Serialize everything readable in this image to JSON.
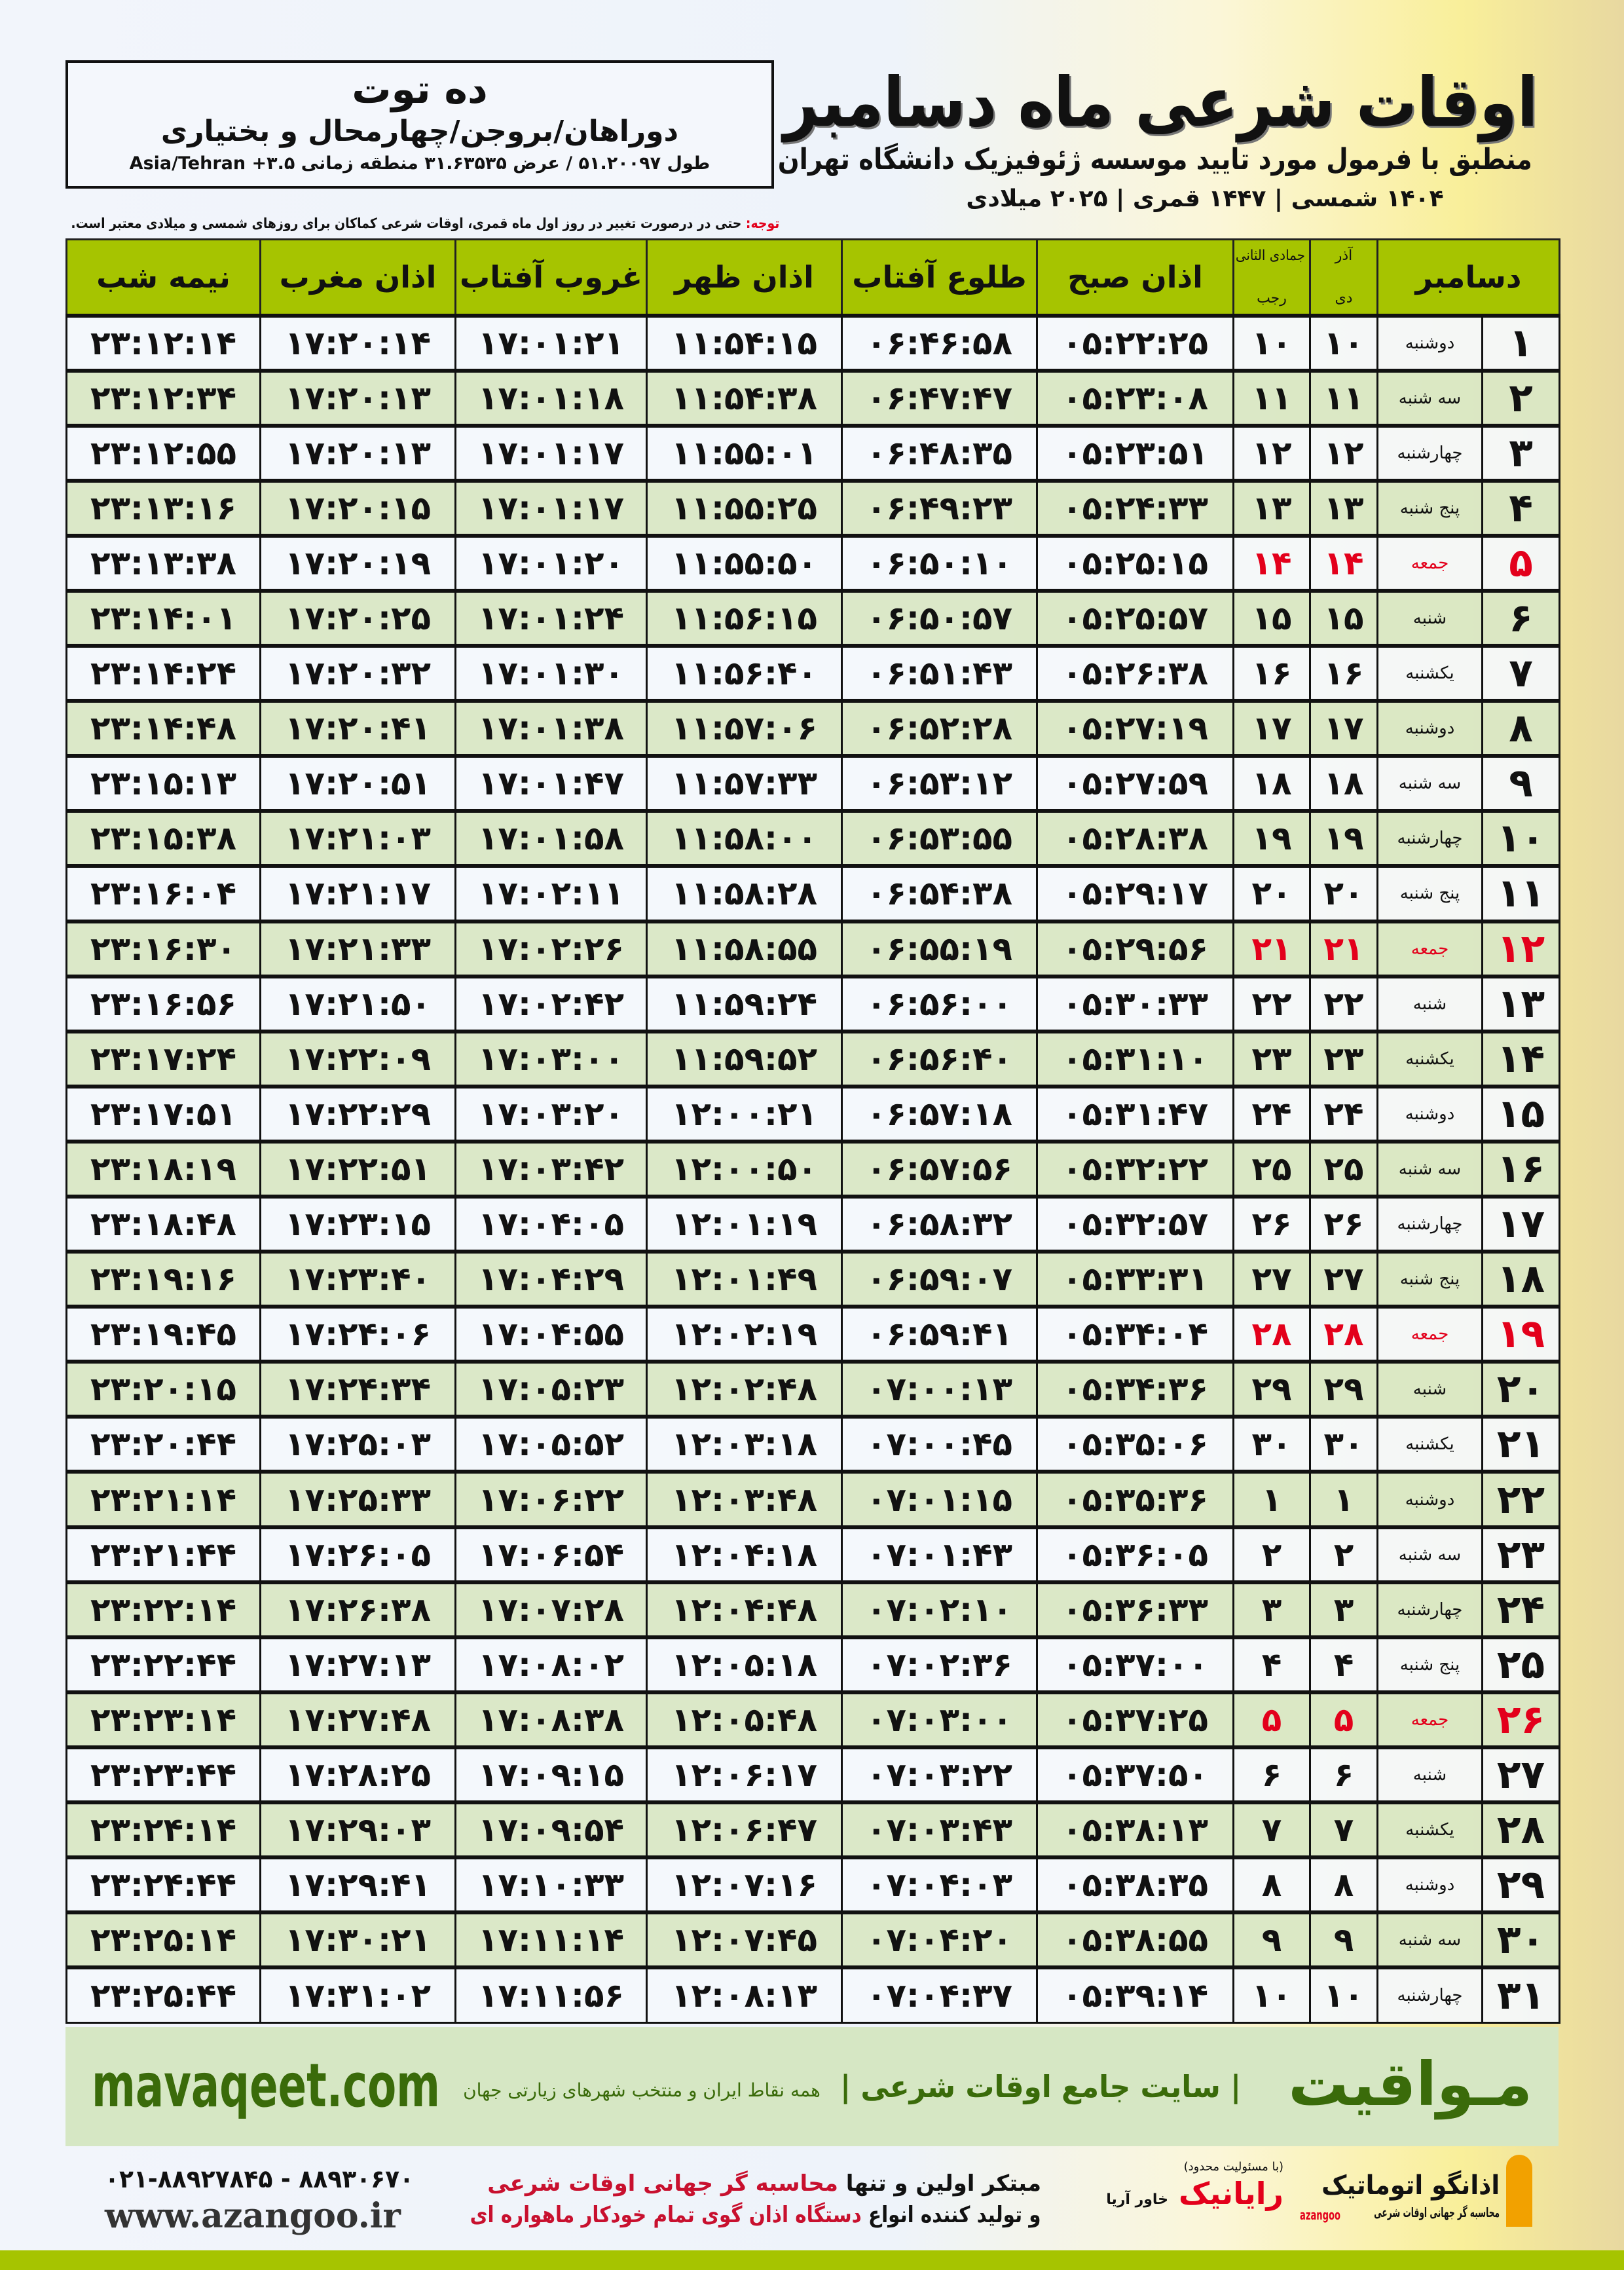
{
  "location": {
    "city": "ده توت",
    "region": "دوراهان/بروجن/چهارمحال و بختیاری",
    "coords": "طول ۵۱.۲۰۰۹۷ / عرض ۳۱.۶۳۵۳۵ منطقه زمانی ۳.۵+ Asia/Tehran"
  },
  "header": {
    "title": "اوقات شرعی ماه دسامبر",
    "subtitle": "منطبق با فرمول مورد تایید موسسه ژئوفیزیک دانشگاه تهران",
    "dates": "۱۴۰۴ شمسی | ۱۴۴۷ قمری | ۲۰۲۵ میلادی"
  },
  "note": {
    "label": "توجه:",
    "text": " حتی در درصورت تغییر در روز اول ماه قمری، اوقات شرعی کماکان برای روزهای شمسی و میلادی معتبر است."
  },
  "columns": {
    "month": "دسامبر",
    "shamsi_months": "آذر",
    "qamari_months": "جمادی الثانی",
    "shamsi_sub": "دی",
    "qamari_sub": "رجب",
    "fajr": "اذان صبح",
    "sunrise": "طلوع آفتاب",
    "dhuhr": "اذان ظهر",
    "sunset": "غروب آفتاب",
    "maghrib": "اذان مغرب",
    "midnight": "نیمه شب"
  },
  "colors": {
    "header_green": "#a6c400",
    "row_green": "#d9e7c5",
    "friday_red": "#e3001b",
    "brand_green": "#3a6b0a"
  },
  "rows": [
    {
      "d": "۱",
      "w": "دوشنبه",
      "s": "۱۰",
      "q": "۱۰",
      "t": [
        "۰۵:۲۲:۲۵",
        "۰۶:۴۶:۵۸",
        "۱۱:۵۴:۱۵",
        "۱۷:۰۱:۲۱",
        "۱۷:۲۰:۱۴",
        "۲۳:۱۲:۱۴"
      ]
    },
    {
      "d": "۲",
      "w": "سه شنبه",
      "s": "۱۱",
      "q": "۱۱",
      "t": [
        "۰۵:۲۳:۰۸",
        "۰۶:۴۷:۴۷",
        "۱۱:۵۴:۳۸",
        "۱۷:۰۱:۱۸",
        "۱۷:۲۰:۱۳",
        "۲۳:۱۲:۳۴"
      ]
    },
    {
      "d": "۳",
      "w": "چهارشنبه",
      "s": "۱۲",
      "q": "۱۲",
      "t": [
        "۰۵:۲۳:۵۱",
        "۰۶:۴۸:۳۵",
        "۱۱:۵۵:۰۱",
        "۱۷:۰۱:۱۷",
        "۱۷:۲۰:۱۳",
        "۲۳:۱۲:۵۵"
      ]
    },
    {
      "d": "۴",
      "w": "پنج شنبه",
      "s": "۱۳",
      "q": "۱۳",
      "t": [
        "۰۵:۲۴:۳۳",
        "۰۶:۴۹:۲۳",
        "۱۱:۵۵:۲۵",
        "۱۷:۰۱:۱۷",
        "۱۷:۲۰:۱۵",
        "۲۳:۱۳:۱۶"
      ]
    },
    {
      "d": "۵",
      "w": "جمعه",
      "s": "۱۴",
      "q": "۱۴",
      "friday": true,
      "t": [
        "۰۵:۲۵:۱۵",
        "۰۶:۵۰:۱۰",
        "۱۱:۵۵:۵۰",
        "۱۷:۰۱:۲۰",
        "۱۷:۲۰:۱۹",
        "۲۳:۱۳:۳۸"
      ]
    },
    {
      "d": "۶",
      "w": "شنبه",
      "s": "۱۵",
      "q": "۱۵",
      "t": [
        "۰۵:۲۵:۵۷",
        "۰۶:۵۰:۵۷",
        "۱۱:۵۶:۱۵",
        "۱۷:۰۱:۲۴",
        "۱۷:۲۰:۲۵",
        "۲۳:۱۴:۰۱"
      ]
    },
    {
      "d": "۷",
      "w": "یکشنبه",
      "s": "۱۶",
      "q": "۱۶",
      "t": [
        "۰۵:۲۶:۳۸",
        "۰۶:۵۱:۴۳",
        "۱۱:۵۶:۴۰",
        "۱۷:۰۱:۳۰",
        "۱۷:۲۰:۳۲",
        "۲۳:۱۴:۲۴"
      ]
    },
    {
      "d": "۸",
      "w": "دوشنبه",
      "s": "۱۷",
      "q": "۱۷",
      "t": [
        "۰۵:۲۷:۱۹",
        "۰۶:۵۲:۲۸",
        "۱۱:۵۷:۰۶",
        "۱۷:۰۱:۳۸",
        "۱۷:۲۰:۴۱",
        "۲۳:۱۴:۴۸"
      ]
    },
    {
      "d": "۹",
      "w": "سه شنبه",
      "s": "۱۸",
      "q": "۱۸",
      "t": [
        "۰۵:۲۷:۵۹",
        "۰۶:۵۳:۱۲",
        "۱۱:۵۷:۳۳",
        "۱۷:۰۱:۴۷",
        "۱۷:۲۰:۵۱",
        "۲۳:۱۵:۱۳"
      ]
    },
    {
      "d": "۱۰",
      "w": "چهارشنبه",
      "s": "۱۹",
      "q": "۱۹",
      "t": [
        "۰۵:۲۸:۳۸",
        "۰۶:۵۳:۵۵",
        "۱۱:۵۸:۰۰",
        "۱۷:۰۱:۵۸",
        "۱۷:۲۱:۰۳",
        "۲۳:۱۵:۳۸"
      ]
    },
    {
      "d": "۱۱",
      "w": "پنج شنبه",
      "s": "۲۰",
      "q": "۲۰",
      "t": [
        "۰۵:۲۹:۱۷",
        "۰۶:۵۴:۳۸",
        "۱۱:۵۸:۲۸",
        "۱۷:۰۲:۱۱",
        "۱۷:۲۱:۱۷",
        "۲۳:۱۶:۰۴"
      ]
    },
    {
      "d": "۱۲",
      "w": "جمعه",
      "s": "۲۱",
      "q": "۲۱",
      "friday": true,
      "t": [
        "۰۵:۲۹:۵۶",
        "۰۶:۵۵:۱۹",
        "۱۱:۵۸:۵۵",
        "۱۷:۰۲:۲۶",
        "۱۷:۲۱:۳۳",
        "۲۳:۱۶:۳۰"
      ]
    },
    {
      "d": "۱۳",
      "w": "شنبه",
      "s": "۲۲",
      "q": "۲۲",
      "t": [
        "۰۵:۳۰:۳۳",
        "۰۶:۵۶:۰۰",
        "۱۱:۵۹:۲۴",
        "۱۷:۰۲:۴۲",
        "۱۷:۲۱:۵۰",
        "۲۳:۱۶:۵۶"
      ]
    },
    {
      "d": "۱۴",
      "w": "یکشنبه",
      "s": "۲۳",
      "q": "۲۳",
      "t": [
        "۰۵:۳۱:۱۰",
        "۰۶:۵۶:۴۰",
        "۱۱:۵۹:۵۲",
        "۱۷:۰۳:۰۰",
        "۱۷:۲۲:۰۹",
        "۲۳:۱۷:۲۴"
      ]
    },
    {
      "d": "۱۵",
      "w": "دوشنبه",
      "s": "۲۴",
      "q": "۲۴",
      "t": [
        "۰۵:۳۱:۴۷",
        "۰۶:۵۷:۱۸",
        "۱۲:۰۰:۲۱",
        "۱۷:۰۳:۲۰",
        "۱۷:۲۲:۲۹",
        "۲۳:۱۷:۵۱"
      ]
    },
    {
      "d": "۱۶",
      "w": "سه شنبه",
      "s": "۲۵",
      "q": "۲۵",
      "t": [
        "۰۵:۳۲:۲۲",
        "۰۶:۵۷:۵۶",
        "۱۲:۰۰:۵۰",
        "۱۷:۰۳:۴۲",
        "۱۷:۲۲:۵۱",
        "۲۳:۱۸:۱۹"
      ]
    },
    {
      "d": "۱۷",
      "w": "چهارشنبه",
      "s": "۲۶",
      "q": "۲۶",
      "t": [
        "۰۵:۳۲:۵۷",
        "۰۶:۵۸:۳۲",
        "۱۲:۰۱:۱۹",
        "۱۷:۰۴:۰۵",
        "۱۷:۲۳:۱۵",
        "۲۳:۱۸:۴۸"
      ]
    },
    {
      "d": "۱۸",
      "w": "پنج شنبه",
      "s": "۲۷",
      "q": "۲۷",
      "t": [
        "۰۵:۳۳:۳۱",
        "۰۶:۵۹:۰۷",
        "۱۲:۰۱:۴۹",
        "۱۷:۰۴:۲۹",
        "۱۷:۲۳:۴۰",
        "۲۳:۱۹:۱۶"
      ]
    },
    {
      "d": "۱۹",
      "w": "جمعه",
      "s": "۲۸",
      "q": "۲۸",
      "friday": true,
      "t": [
        "۰۵:۳۴:۰۴",
        "۰۶:۵۹:۴۱",
        "۱۲:۰۲:۱۹",
        "۱۷:۰۴:۵۵",
        "۱۷:۲۴:۰۶",
        "۲۳:۱۹:۴۵"
      ]
    },
    {
      "d": "۲۰",
      "w": "شنبه",
      "s": "۲۹",
      "q": "۲۹",
      "t": [
        "۰۵:۳۴:۳۶",
        "۰۷:۰۰:۱۳",
        "۱۲:۰۲:۴۸",
        "۱۷:۰۵:۲۳",
        "۱۷:۲۴:۳۴",
        "۲۳:۲۰:۱۵"
      ]
    },
    {
      "d": "۲۱",
      "w": "یکشنبه",
      "s": "۳۰",
      "q": "۳۰",
      "t": [
        "۰۵:۳۵:۰۶",
        "۰۷:۰۰:۴۵",
        "۱۲:۰۳:۱۸",
        "۱۷:۰۵:۵۲",
        "۱۷:۲۵:۰۳",
        "۲۳:۲۰:۴۴"
      ]
    },
    {
      "d": "۲۲",
      "w": "دوشنبه",
      "s": "۱",
      "q": "۱",
      "t": [
        "۰۵:۳۵:۳۶",
        "۰۷:۰۱:۱۵",
        "۱۲:۰۳:۴۸",
        "۱۷:۰۶:۲۲",
        "۱۷:۲۵:۳۳",
        "۲۳:۲۱:۱۴"
      ]
    },
    {
      "d": "۲۳",
      "w": "سه شنبه",
      "s": "۲",
      "q": "۲",
      "t": [
        "۰۵:۳۶:۰۵",
        "۰۷:۰۱:۴۳",
        "۱۲:۰۴:۱۸",
        "۱۷:۰۶:۵۴",
        "۱۷:۲۶:۰۵",
        "۲۳:۲۱:۴۴"
      ]
    },
    {
      "d": "۲۴",
      "w": "چهارشنبه",
      "s": "۳",
      "q": "۳",
      "t": [
        "۰۵:۳۶:۳۳",
        "۰۷:۰۲:۱۰",
        "۱۲:۰۴:۴۸",
        "۱۷:۰۷:۲۸",
        "۱۷:۲۶:۳۸",
        "۲۳:۲۲:۱۴"
      ]
    },
    {
      "d": "۲۵",
      "w": "پنج شنبه",
      "s": "۴",
      "q": "۴",
      "t": [
        "۰۵:۳۷:۰۰",
        "۰۷:۰۲:۳۶",
        "۱۲:۰۵:۱۸",
        "۱۷:۰۸:۰۲",
        "۱۷:۲۷:۱۳",
        "۲۳:۲۲:۴۴"
      ]
    },
    {
      "d": "۲۶",
      "w": "جمعه",
      "s": "۵",
      "q": "۵",
      "friday": true,
      "t": [
        "۰۵:۳۷:۲۵",
        "۰۷:۰۳:۰۰",
        "۱۲:۰۵:۴۸",
        "۱۷:۰۸:۳۸",
        "۱۷:۲۷:۴۸",
        "۲۳:۲۳:۱۴"
      ]
    },
    {
      "d": "۲۷",
      "w": "شنبه",
      "s": "۶",
      "q": "۶",
      "t": [
        "۰۵:۳۷:۵۰",
        "۰۷:۰۳:۲۲",
        "۱۲:۰۶:۱۷",
        "۱۷:۰۹:۱۵",
        "۱۷:۲۸:۲۵",
        "۲۳:۲۳:۴۴"
      ]
    },
    {
      "d": "۲۸",
      "w": "یکشنبه",
      "s": "۷",
      "q": "۷",
      "t": [
        "۰۵:۳۸:۱۳",
        "۰۷:۰۳:۴۳",
        "۱۲:۰۶:۴۷",
        "۱۷:۰۹:۵۴",
        "۱۷:۲۹:۰۳",
        "۲۳:۲۴:۱۴"
      ]
    },
    {
      "d": "۲۹",
      "w": "دوشنبه",
      "s": "۸",
      "q": "۸",
      "t": [
        "۰۵:۳۸:۳۵",
        "۰۷:۰۴:۰۳",
        "۱۲:۰۷:۱۶",
        "۱۷:۱۰:۳۳",
        "۱۷:۲۹:۴۱",
        "۲۳:۲۴:۴۴"
      ]
    },
    {
      "d": "۳۰",
      "w": "سه شنبه",
      "s": "۹",
      "q": "۹",
      "t": [
        "۰۵:۳۸:۵۵",
        "۰۷:۰۴:۲۰",
        "۱۲:۰۷:۴۵",
        "۱۷:۱۱:۱۴",
        "۱۷:۳۰:۲۱",
        "۲۳:۲۵:۱۴"
      ]
    },
    {
      "d": "۳۱",
      "w": "چهارشنبه",
      "s": "۱۰",
      "q": "۱۰",
      "t": [
        "۰۵:۳۹:۱۴",
        "۰۷:۰۴:۳۷",
        "۱۲:۰۸:۱۳",
        "۱۷:۱۱:۵۶",
        "۱۷:۳۱:۰۲",
        "۲۳:۲۵:۴۴"
      ]
    }
  ],
  "footer": {
    "brand": "مـواقیت",
    "slogan": "| سایت جامع اوقات شرعی |",
    "slogan2": "همه نقاط ایران و منتخب شهرهای زیارتی جهان",
    "site": "mavaqeet.com",
    "logo1": "اذانگو اتوماتیک",
    "logo1_sub": "محاسبه گر جهانی اوقات شرعی",
    "logo1_en": "azangoo",
    "logo2": "رایانیک",
    "logo2_pre": "خاور آریا",
    "logo2_sub": "(با مسئولیت محدود)",
    "ad_line1_a": "مبتکر اولین و تنها ",
    "ad_line1_b": "محاسبه گر جهانی اوقات شرعی",
    "ad_line2_a": "و تولید کننده انواع ",
    "ad_line2_b": "دستگاه اذان گوی تمام خودکار ماهواره ای",
    "phone": "۰۲۱-۸۸۹۲۷۸۴۵ - ۸۸۹۳۰۶۷۰",
    "www": "www.azangoo.ir"
  }
}
